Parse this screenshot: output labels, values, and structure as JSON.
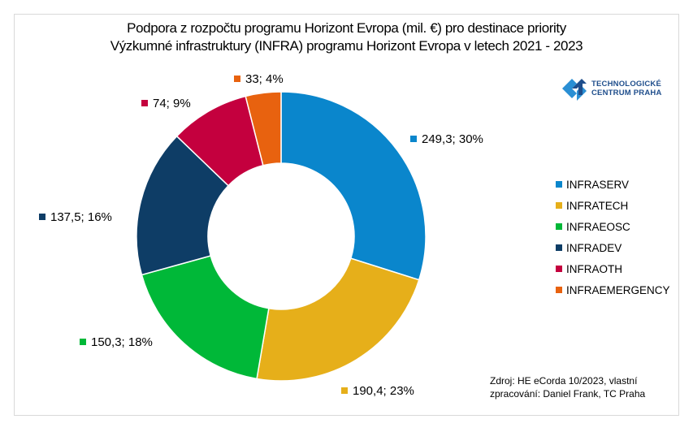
{
  "chart_data": {
    "type": "pie",
    "variant": "donut",
    "title": "Podpora z rozpočtu programu Horizont Evropa (mil. €) pro destinace priority",
    "subtitle": "Výzkumné infrastruktury (INFRA) programu Horizont Evropa v letech 2021 - 2023",
    "categories": [
      "INFRASERV",
      "INFRATECH",
      "INFRAEOSC",
      "INFRADEV",
      "INFRAOTH",
      "INFRAEMERGENCY"
    ],
    "values": [
      249.3,
      190.4,
      150.3,
      137.5,
      74,
      33
    ],
    "percents": [
      30,
      23,
      18,
      16,
      9,
      4
    ],
    "data_labels": [
      "249,3; 30%",
      "190,4; 23%",
      "150,3; 18%",
      "137,5; 16%",
      "74; 9%",
      "33; 4%"
    ],
    "colors": [
      "#0a86cc",
      "#e6af1a",
      "#00b838",
      "#0e3d66",
      "#c4003e",
      "#e8620f"
    ],
    "legend_position": "right",
    "unit": "mil. €"
  },
  "logo": {
    "line1": "TECHNOLOGICKÉ",
    "line2": "CENTRUM PRAHA",
    "icon": "tc-praha-logo-icon"
  },
  "source": {
    "line1": "Zdroj: HE eCorda 10/2023, vlastní",
    "line2": "zpracování: Daniel Frank, TC Praha"
  }
}
